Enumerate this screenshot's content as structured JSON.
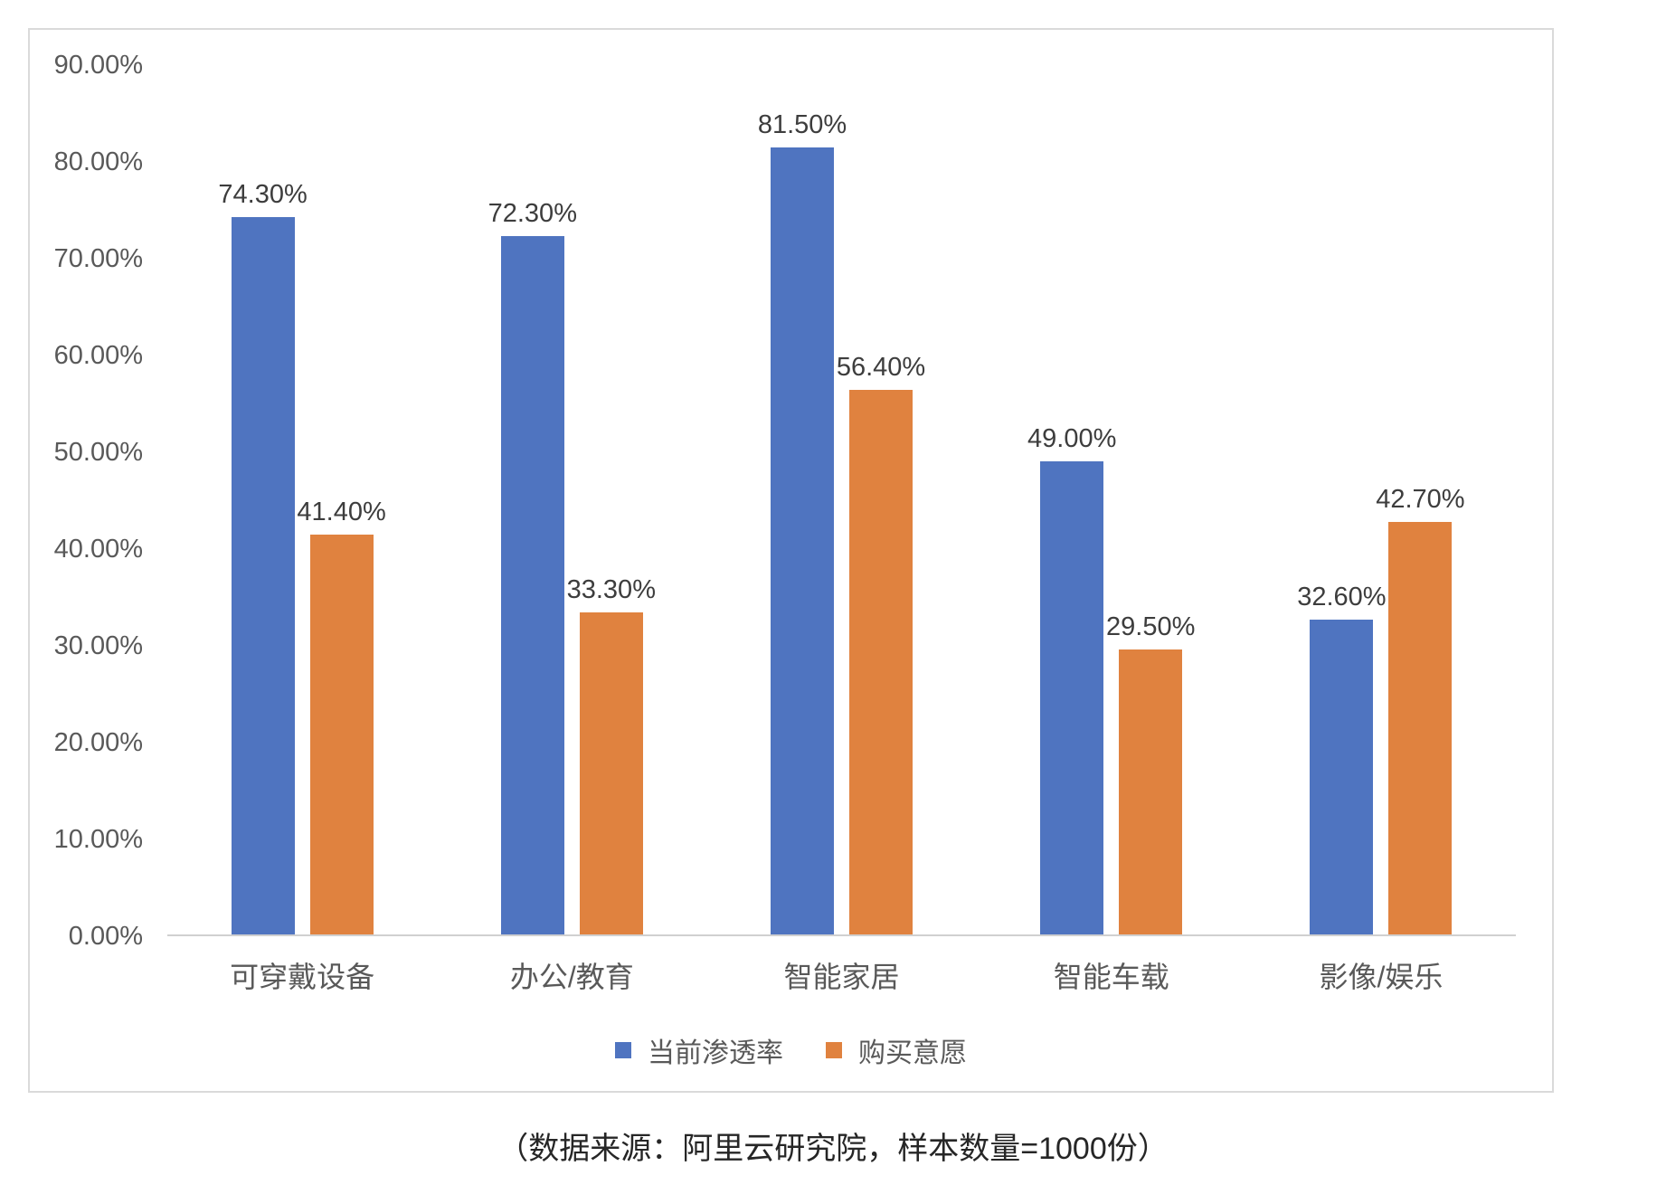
{
  "chart_data": {
    "type": "bar",
    "title": "",
    "xlabel": "",
    "ylabel": "",
    "grid": false,
    "legend_position": "bottom",
    "categories": [
      "可穿戴设备",
      "办公/教育",
      "智能家居",
      "智能车载",
      "影像/娱乐"
    ],
    "series": [
      {
        "name": "当前渗透率",
        "color": "#4F74C0",
        "values": [
          74.3,
          72.3,
          81.5,
          49.0,
          32.6
        ],
        "data_labels": [
          "74.30%",
          "72.30%",
          "81.50%",
          "49.00%",
          "32.60%"
        ]
      },
      {
        "name": "购买意愿",
        "color": "#E0823F",
        "values": [
          41.4,
          33.3,
          56.4,
          29.5,
          42.7
        ],
        "data_labels": [
          "41.40%",
          "33.30%",
          "56.40%",
          "29.50%",
          "42.70%"
        ]
      }
    ],
    "y_axis": {
      "min": 0,
      "max": 90,
      "step": 10,
      "tick_labels": [
        "0.00%",
        "10.00%",
        "20.00%",
        "30.00%",
        "40.00%",
        "50.00%",
        "60.00%",
        "70.00%",
        "80.00%",
        "90.00%"
      ]
    }
  },
  "caption": "（数据来源：阿里云研究院，样本数量=1000份）"
}
